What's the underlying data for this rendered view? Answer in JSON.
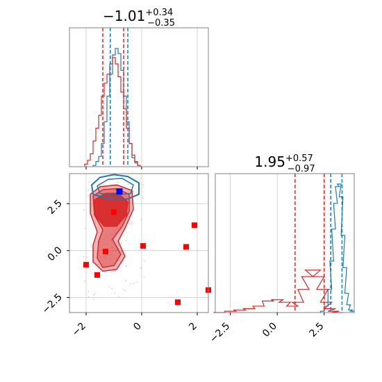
{
  "chart_data": [
    {
      "type": "histogram",
      "panel": "top-left marginal",
      "title": {
        "value": "−1.01",
        "sup": "+0.34",
        "sub": "−0.35"
      },
      "xlim": [
        -2.6,
        2.4
      ],
      "grid": true,
      "xtick_values": [
        -2,
        0,
        2
      ],
      "quantile_lines": [
        {
          "series": "red",
          "values": [
            -1.4,
            -0.65
          ]
        },
        {
          "series": "blue",
          "values": [
            -1.13,
            -0.5
          ]
        }
      ],
      "series": [
        {
          "name": "",
          "color": "#1f77b4",
          "x": [
            -1.7,
            -1.6,
            -1.5,
            -1.4,
            -1.3,
            -1.2,
            -1.1,
            -1.0,
            -0.9,
            -0.8,
            -0.7,
            -0.6,
            -0.5,
            -0.4,
            -0.3,
            -0.2,
            -0.1
          ],
          "density": [
            0.01,
            0.04,
            0.08,
            0.18,
            0.35,
            0.55,
            0.72,
            0.87,
            0.92,
            0.88,
            0.75,
            0.55,
            0.35,
            0.18,
            0.07,
            0.03,
            0.01
          ]
        },
        {
          "name": "",
          "color": "#d62728",
          "x": [
            -2.0,
            -1.9,
            -1.8,
            -1.7,
            -1.6,
            -1.5,
            -1.4,
            -1.3,
            -1.2,
            -1.1,
            -1.0,
            -0.9,
            -0.8,
            -0.7,
            -0.6,
            -0.5,
            -0.4,
            -0.3,
            -0.2,
            -0.1
          ],
          "density": [
            0.02,
            0.05,
            0.1,
            0.2,
            0.3,
            0.4,
            0.55,
            0.65,
            0.72,
            0.8,
            0.85,
            0.8,
            0.7,
            0.58,
            0.45,
            0.3,
            0.18,
            0.09,
            0.04,
            0.01
          ]
        }
      ]
    },
    {
      "type": "scatter",
      "panel": "bottom-left joint",
      "xlim": [
        -2.6,
        2.4
      ],
      "ylim": [
        -3.3,
        4.1
      ],
      "grid": true,
      "xtick_values": [
        -2,
        0,
        2
      ],
      "xtick_labels": [
        "−2",
        "0",
        "2"
      ],
      "ytick_values": [
        -2.5,
        0,
        2.5
      ],
      "ytick_labels": [
        "−2.5",
        "0.0",
        "2.5"
      ],
      "contours": [
        "blue",
        "red"
      ],
      "points": {
        "color": "#ff0000",
        "x": [
          -2.0,
          -1.6,
          -1.3,
          -1.0,
          0.05,
          1.6,
          1.9,
          2.4,
          1.3
        ],
        "y": [
          -0.75,
          -1.3,
          -0.05,
          2.05,
          0.25,
          0.2,
          1.35,
          -2.1,
          -2.75
        ]
      },
      "truth": {
        "color": "#0000ff",
        "x": -0.8,
        "y": 3.15
      }
    },
    {
      "type": "histogram",
      "panel": "bottom-right marginal",
      "title": {
        "value": "1.95",
        "sup": "+0.57",
        "sub": "−0.97"
      },
      "xlim": [
        -3.3,
        4.1
      ],
      "grid": true,
      "xtick_values": [
        -2.5,
        0,
        2.5
      ],
      "xtick_labels": [
        "−2.5",
        "0.0",
        "2.5"
      ],
      "quantile_lines": [
        {
          "series": "red",
          "values": [
            0.95,
            2.5
          ]
        },
        {
          "series": "blue",
          "values": [
            2.85,
            3.45
          ]
        }
      ],
      "series": [
        {
          "name": "",
          "color": "#1f77b4",
          "x": [
            2.4,
            2.6,
            2.8,
            2.9,
            3.0,
            3.1,
            3.2,
            3.3,
            3.4,
            3.5,
            3.6,
            3.7,
            3.8,
            3.9,
            4.0
          ],
          "density": [
            0.01,
            0.05,
            0.18,
            0.4,
            0.65,
            0.85,
            0.98,
            1.0,
            0.9,
            0.6,
            0.35,
            0.15,
            0.06,
            0.02,
            0.01
          ]
        },
        {
          "name": "",
          "color": "#d62728",
          "x": [
            -3.1,
            -2.5,
            -2.0,
            -1.5,
            -1.0,
            -0.5,
            0.0,
            0.4,
            0.8,
            1.1,
            1.4,
            1.6,
            1.8,
            2.0,
            2.2,
            2.4,
            2.6,
            2.8,
            3.0,
            3.2
          ],
          "density": [
            0.0,
            0.01,
            0.02,
            0.03,
            0.05,
            0.09,
            0.1,
            0.08,
            0.05,
            0.08,
            0.18,
            0.28,
            0.33,
            0.33,
            0.28,
            0.18,
            0.08,
            0.03,
            0.01,
            0.0
          ]
        }
      ]
    }
  ]
}
